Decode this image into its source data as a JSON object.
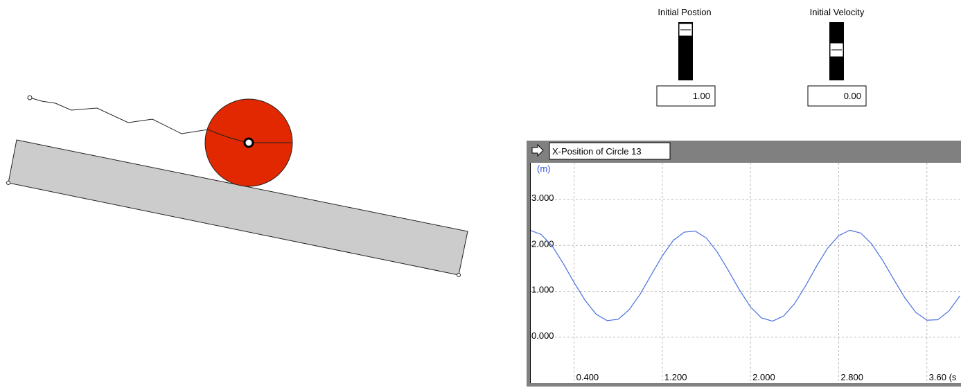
{
  "controls": [
    {
      "label": "Initial Postion",
      "value": "1.00"
    },
    {
      "label": "Initial Velocity",
      "value": "0.00"
    }
  ],
  "chart_data": {
    "type": "line",
    "title": "X-Position of Circle 13",
    "y_unit": "(m)",
    "x": [
      0,
      0.1,
      0.2,
      0.3,
      0.4,
      0.5,
      0.6,
      0.7,
      0.8,
      0.9,
      1.0,
      1.1,
      1.2,
      1.3,
      1.4,
      1.5,
      1.6,
      1.7,
      1.8,
      1.9,
      2.0,
      2.1,
      2.2,
      2.3,
      2.4,
      2.5,
      2.6,
      2.7,
      2.8,
      2.9,
      3.0,
      3.1,
      3.2,
      3.3,
      3.4,
      3.5,
      3.6,
      3.7,
      3.8,
      3.9
    ],
    "series": [
      {
        "color": "#4a6ee0",
        "values": [
          2.33,
          2.24,
          1.99,
          1.61,
          1.19,
          0.8,
          0.5,
          0.36,
          0.39,
          0.6,
          0.94,
          1.36,
          1.77,
          2.11,
          2.29,
          2.31,
          2.16,
          1.85,
          1.45,
          1.03,
          0.66,
          0.42,
          0.35,
          0.46,
          0.73,
          1.12,
          1.55,
          1.94,
          2.21,
          2.33,
          2.27,
          2.03,
          1.67,
          1.26,
          0.86,
          0.54,
          0.37,
          0.38,
          0.57,
          0.9
        ]
      }
    ],
    "xlim": [
      0,
      3.91
    ],
    "ylim": [
      -1,
      3.8
    ],
    "xticks": [
      {
        "value": 0.4,
        "label": "0.400"
      },
      {
        "value": 1.2,
        "label": "1.200"
      },
      {
        "value": 2.0,
        "label": "2.000"
      },
      {
        "value": 2.8,
        "label": "2.800"
      },
      {
        "value": 3.6,
        "label": "3.60 (s"
      }
    ],
    "yticks": [
      {
        "value": 0,
        "label": "0.000"
      },
      {
        "value": 1,
        "label": "1.000"
      },
      {
        "value": 2,
        "label": "2.000"
      },
      {
        "value": 3,
        "label": "3.000"
      }
    ],
    "grid": true
  }
}
